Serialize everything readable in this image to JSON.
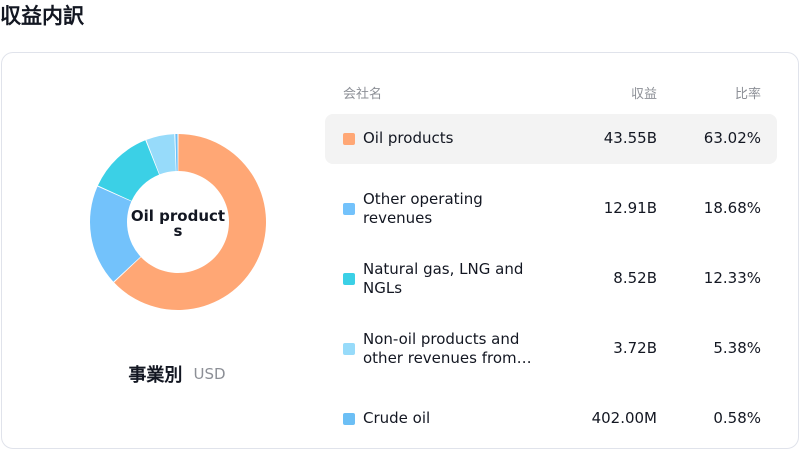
{
  "page_title": "収益内訳",
  "breakdown": {
    "title": "事業別",
    "currency": "USD",
    "center_label": "Oil products"
  },
  "table": {
    "headers": {
      "name": "会社名",
      "revenue": "収益",
      "ratio": "比率"
    },
    "rows": [
      {
        "name": "Oil products",
        "revenue": "43.55B",
        "ratio": "63.02%",
        "color": "#ffa775",
        "selected": true
      },
      {
        "name": "Other operating revenues",
        "revenue": "12.91B",
        "ratio": "18.68%",
        "color": "#73c2fb",
        "selected": false
      },
      {
        "name": "Natural gas, LNG and NGLs",
        "revenue": "8.52B",
        "ratio": "12.33%",
        "color": "#3bd0e6",
        "selected": false
      },
      {
        "name": "Non-oil products and other revenues from…",
        "revenue": "3.72B",
        "ratio": "5.38%",
        "color": "#97dbfa",
        "selected": false
      },
      {
        "name": "Crude oil",
        "revenue": "402.00M",
        "ratio": "0.58%",
        "color": "#6cbff5",
        "selected": false
      }
    ]
  },
  "chart_data": {
    "type": "pie",
    "categories": [
      "Oil products",
      "Other operating revenues",
      "Natural gas, LNG and NGLs",
      "Non-oil products and other revenues from…",
      "Crude oil"
    ],
    "values": [
      63.02,
      18.68,
      12.33,
      5.38,
      0.58
    ],
    "colors": [
      "#ffa775",
      "#73c2fb",
      "#3bd0e6",
      "#97dbfa",
      "#6cbff5"
    ],
    "donut": true,
    "highlighted": "Oil products"
  }
}
